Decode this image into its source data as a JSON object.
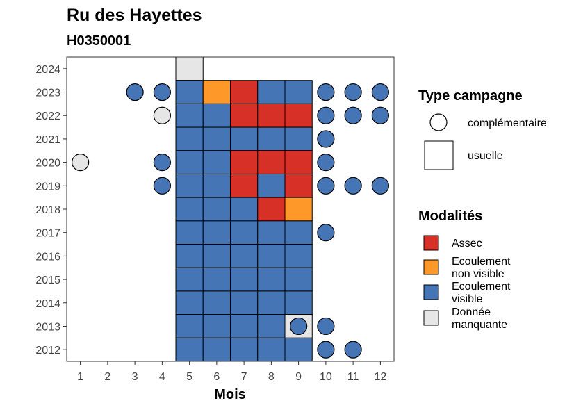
{
  "chart_data": {
    "type": "heatmap",
    "title": "Ru des Hayettes",
    "subtitle": "H0350001",
    "xlabel": "Mois",
    "ylabel": "",
    "x_ticks": [
      1,
      2,
      3,
      4,
      5,
      6,
      7,
      8,
      9,
      10,
      11,
      12
    ],
    "y_ticks": [
      2012,
      2013,
      2014,
      2015,
      2016,
      2017,
      2018,
      2019,
      2020,
      2021,
      2022,
      2023,
      2024
    ],
    "xlim": [
      0.5,
      12.5
    ],
    "ylim": [
      2011.5,
      2024.5
    ],
    "grid": false,
    "legend_position": "right",
    "colors": {
      "assec": "#D73027",
      "ecoulement_non_visible": "#FE9929",
      "ecoulement_visible": "#4575B4",
      "donnee_manquante": "#E6E6E6"
    },
    "legends": {
      "type_campagne": {
        "title": "Type campagne",
        "items": [
          {
            "key": "complementaire",
            "label": "complémentaire",
            "shape": "circle"
          },
          {
            "key": "usuelle",
            "label": "usuelle",
            "shape": "square"
          }
        ]
      },
      "modalites": {
        "title": "Modalités",
        "items": [
          {
            "key": "assec",
            "label_lines": [
              "Assec"
            ],
            "color": "#D73027"
          },
          {
            "key": "ecoulement_non_visible",
            "label_lines": [
              "Ecoulement",
              "non visible"
            ],
            "color": "#FE9929"
          },
          {
            "key": "ecoulement_visible",
            "label_lines": [
              "Ecoulement",
              "visible"
            ],
            "color": "#4575B4"
          },
          {
            "key": "donnee_manquante",
            "label_lines": [
              "Donnée",
              "manquante"
            ],
            "color": "#E6E6E6"
          }
        ]
      }
    },
    "usuelle": [
      {
        "year": 2024,
        "month": 5,
        "value": "donnee_manquante"
      },
      {
        "year": 2023,
        "month": 5,
        "value": "ecoulement_visible"
      },
      {
        "year": 2023,
        "month": 6,
        "value": "ecoulement_non_visible"
      },
      {
        "year": 2023,
        "month": 7,
        "value": "assec"
      },
      {
        "year": 2023,
        "month": 8,
        "value": "ecoulement_visible"
      },
      {
        "year": 2023,
        "month": 9,
        "value": "ecoulement_visible"
      },
      {
        "year": 2022,
        "month": 5,
        "value": "ecoulement_visible"
      },
      {
        "year": 2022,
        "month": 6,
        "value": "ecoulement_visible"
      },
      {
        "year": 2022,
        "month": 7,
        "value": "assec"
      },
      {
        "year": 2022,
        "month": 8,
        "value": "assec"
      },
      {
        "year": 2022,
        "month": 9,
        "value": "assec"
      },
      {
        "year": 2021,
        "month": 5,
        "value": "ecoulement_visible"
      },
      {
        "year": 2021,
        "month": 6,
        "value": "ecoulement_visible"
      },
      {
        "year": 2021,
        "month": 7,
        "value": "ecoulement_visible"
      },
      {
        "year": 2021,
        "month": 8,
        "value": "ecoulement_visible"
      },
      {
        "year": 2021,
        "month": 9,
        "value": "ecoulement_visible"
      },
      {
        "year": 2020,
        "month": 5,
        "value": "ecoulement_visible"
      },
      {
        "year": 2020,
        "month": 6,
        "value": "ecoulement_visible"
      },
      {
        "year": 2020,
        "month": 7,
        "value": "assec"
      },
      {
        "year": 2020,
        "month": 8,
        "value": "assec"
      },
      {
        "year": 2020,
        "month": 9,
        "value": "assec"
      },
      {
        "year": 2019,
        "month": 5,
        "value": "ecoulement_visible"
      },
      {
        "year": 2019,
        "month": 6,
        "value": "ecoulement_visible"
      },
      {
        "year": 2019,
        "month": 7,
        "value": "assec"
      },
      {
        "year": 2019,
        "month": 8,
        "value": "ecoulement_visible"
      },
      {
        "year": 2019,
        "month": 9,
        "value": "assec"
      },
      {
        "year": 2018,
        "month": 5,
        "value": "ecoulement_visible"
      },
      {
        "year": 2018,
        "month": 6,
        "value": "ecoulement_visible"
      },
      {
        "year": 2018,
        "month": 7,
        "value": "ecoulement_visible"
      },
      {
        "year": 2018,
        "month": 8,
        "value": "assec"
      },
      {
        "year": 2018,
        "month": 9,
        "value": "ecoulement_non_visible"
      },
      {
        "year": 2017,
        "month": 5,
        "value": "ecoulement_visible"
      },
      {
        "year": 2017,
        "month": 6,
        "value": "ecoulement_visible"
      },
      {
        "year": 2017,
        "month": 7,
        "value": "ecoulement_visible"
      },
      {
        "year": 2017,
        "month": 8,
        "value": "ecoulement_visible"
      },
      {
        "year": 2017,
        "month": 9,
        "value": "ecoulement_visible"
      },
      {
        "year": 2016,
        "month": 5,
        "value": "ecoulement_visible"
      },
      {
        "year": 2016,
        "month": 6,
        "value": "ecoulement_visible"
      },
      {
        "year": 2016,
        "month": 7,
        "value": "ecoulement_visible"
      },
      {
        "year": 2016,
        "month": 8,
        "value": "ecoulement_visible"
      },
      {
        "year": 2016,
        "month": 9,
        "value": "ecoulement_visible"
      },
      {
        "year": 2015,
        "month": 5,
        "value": "ecoulement_visible"
      },
      {
        "year": 2015,
        "month": 6,
        "value": "ecoulement_visible"
      },
      {
        "year": 2015,
        "month": 7,
        "value": "ecoulement_visible"
      },
      {
        "year": 2015,
        "month": 8,
        "value": "ecoulement_visible"
      },
      {
        "year": 2015,
        "month": 9,
        "value": "ecoulement_visible"
      },
      {
        "year": 2014,
        "month": 5,
        "value": "ecoulement_visible"
      },
      {
        "year": 2014,
        "month": 6,
        "value": "ecoulement_visible"
      },
      {
        "year": 2014,
        "month": 7,
        "value": "ecoulement_visible"
      },
      {
        "year": 2014,
        "month": 8,
        "value": "ecoulement_visible"
      },
      {
        "year": 2014,
        "month": 9,
        "value": "ecoulement_visible"
      },
      {
        "year": 2013,
        "month": 5,
        "value": "ecoulement_visible"
      },
      {
        "year": 2013,
        "month": 6,
        "value": "ecoulement_visible"
      },
      {
        "year": 2013,
        "month": 7,
        "value": "ecoulement_visible"
      },
      {
        "year": 2013,
        "month": 8,
        "value": "ecoulement_visible"
      },
      {
        "year": 2013,
        "month": 9,
        "value": "donnee_manquante"
      },
      {
        "year": 2012,
        "month": 5,
        "value": "ecoulement_visible"
      },
      {
        "year": 2012,
        "month": 6,
        "value": "ecoulement_visible"
      },
      {
        "year": 2012,
        "month": 7,
        "value": "ecoulement_visible"
      },
      {
        "year": 2012,
        "month": 8,
        "value": "ecoulement_visible"
      },
      {
        "year": 2012,
        "month": 9,
        "value": "ecoulement_visible"
      }
    ],
    "complementaire": [
      {
        "year": 2023,
        "month": 3,
        "value": "ecoulement_visible"
      },
      {
        "year": 2023,
        "month": 4,
        "value": "ecoulement_visible"
      },
      {
        "year": 2023,
        "month": 10,
        "value": "ecoulement_visible"
      },
      {
        "year": 2023,
        "month": 11,
        "value": "ecoulement_visible"
      },
      {
        "year": 2023,
        "month": 12,
        "value": "ecoulement_visible"
      },
      {
        "year": 2022,
        "month": 4,
        "value": "donnee_manquante"
      },
      {
        "year": 2022,
        "month": 10,
        "value": "ecoulement_visible"
      },
      {
        "year": 2022,
        "month": 11,
        "value": "ecoulement_visible"
      },
      {
        "year": 2022,
        "month": 12,
        "value": "ecoulement_visible"
      },
      {
        "year": 2021,
        "month": 10,
        "value": "ecoulement_visible"
      },
      {
        "year": 2020,
        "month": 1,
        "value": "donnee_manquante"
      },
      {
        "year": 2020,
        "month": 4,
        "value": "ecoulement_visible"
      },
      {
        "year": 2020,
        "month": 10,
        "value": "ecoulement_visible"
      },
      {
        "year": 2019,
        "month": 4,
        "value": "ecoulement_visible"
      },
      {
        "year": 2019,
        "month": 10,
        "value": "ecoulement_visible"
      },
      {
        "year": 2019,
        "month": 11,
        "value": "ecoulement_visible"
      },
      {
        "year": 2019,
        "month": 12,
        "value": "ecoulement_visible"
      },
      {
        "year": 2017,
        "month": 10,
        "value": "ecoulement_visible"
      },
      {
        "year": 2013,
        "month": 9,
        "value": "ecoulement_visible"
      },
      {
        "year": 2013,
        "month": 10,
        "value": "ecoulement_visible"
      },
      {
        "year": 2012,
        "month": 10,
        "value": "ecoulement_visible"
      },
      {
        "year": 2012,
        "month": 11,
        "value": "ecoulement_visible"
      }
    ]
  }
}
